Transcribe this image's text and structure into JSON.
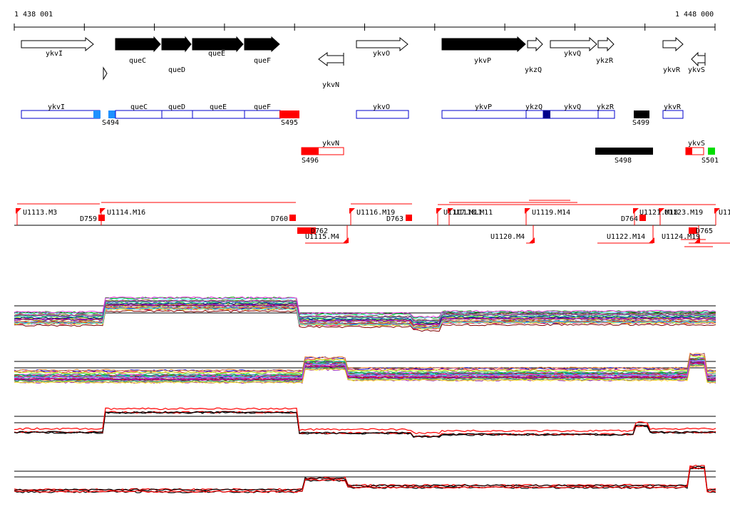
{
  "axis": {
    "start_label": "1 438 001",
    "end_label": "1 448 000"
  },
  "colors": {
    "blue": "#0000cc",
    "red": "#ff0000",
    "black": "#000000",
    "lightblue": "#1e90ff",
    "green": "#00dd00"
  },
  "genes": [
    {
      "name": "ykvI",
      "strand": "+",
      "filled": false
    },
    {
      "name": "queC",
      "strand": "+",
      "filled": true
    },
    {
      "name": "queD",
      "strand": "+",
      "filled": true
    },
    {
      "name": "queE",
      "strand": "+",
      "filled": true
    },
    {
      "name": "queF",
      "strand": "+",
      "filled": true
    },
    {
      "name": "ykvN",
      "strand": "-",
      "filled": false
    },
    {
      "name": "ykvO",
      "strand": "+",
      "filled": false
    },
    {
      "name": "ykvP",
      "strand": "+",
      "filled": true
    },
    {
      "name": "ykzQ",
      "strand": "+",
      "filled": false
    },
    {
      "name": "ykvQ",
      "strand": "+",
      "filled": false
    },
    {
      "name": "ykzR",
      "strand": "+",
      "filled": false
    },
    {
      "name": "ykvR",
      "strand": "+",
      "filled": false
    },
    {
      "name": "ykvS",
      "strand": "-",
      "filled": false
    }
  ],
  "segments": [
    {
      "name": "S494",
      "color": "lightblue"
    },
    {
      "name": "S495",
      "color": "red"
    },
    {
      "name": "S496",
      "color": "red"
    },
    {
      "name": "S498",
      "color": "black"
    },
    {
      "name": "S499",
      "color": "black"
    },
    {
      "name": "S501",
      "color": "green"
    }
  ],
  "transcripts_top": [
    "U1113.M3",
    "U1114.M16",
    "U1116.M19",
    "U1117.M11",
    "U1118.M11",
    "U1119.M14",
    "U1121.M18",
    "U1123.M19",
    "U11"
  ],
  "transcripts_bottom": [
    "U1115.M4",
    "U1120.M4",
    "U1122.M14",
    "U1124.M19"
  ],
  "downregions": [
    "D759",
    "D760",
    "D762",
    "D763",
    "D764",
    "D765"
  ]
}
